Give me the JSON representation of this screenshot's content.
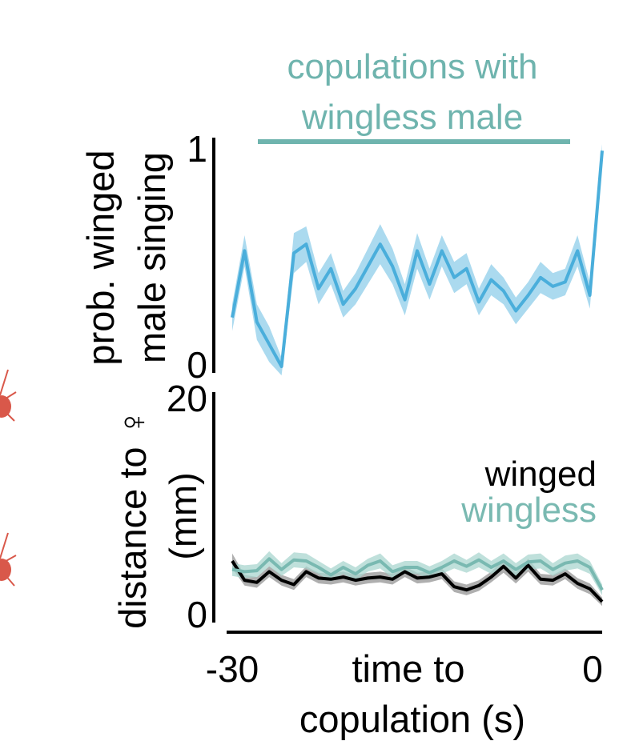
{
  "chart_data": [
    {
      "type": "line",
      "title_lines": [
        "copulations with",
        "wingless male"
      ],
      "ylabel_lines": [
        "prob. winged",
        "male singing"
      ],
      "xlim": [
        -30,
        0
      ],
      "ylim": [
        0,
        1
      ],
      "yticks": [
        "0",
        "1"
      ],
      "shaded_band": "mean ± error",
      "series": [
        {
          "x": [
            -30,
            -29,
            -28,
            -27,
            -26,
            -25,
            -24,
            -23,
            -22,
            -21,
            -20,
            -19,
            -18,
            -17,
            -16,
            -15,
            -14,
            -13,
            -12,
            -11,
            -10,
            -9,
            -8,
            -7,
            -6,
            -5,
            -4,
            -3,
            -2,
            -1,
            0
          ],
          "y": [
            0.22,
            0.52,
            0.2,
            0.1,
            0.0,
            0.51,
            0.55,
            0.35,
            0.44,
            0.28,
            0.35,
            0.45,
            0.55,
            0.45,
            0.3,
            0.52,
            0.37,
            0.52,
            0.4,
            0.44,
            0.29,
            0.39,
            0.34,
            0.25,
            0.32,
            0.4,
            0.36,
            0.38,
            0.52,
            0.32,
            0.97
          ],
          "err": [
            0.06,
            0.07,
            0.08,
            0.08,
            0.04,
            0.09,
            0.08,
            0.07,
            0.07,
            0.06,
            0.07,
            0.08,
            0.09,
            0.08,
            0.07,
            0.08,
            0.07,
            0.07,
            0.07,
            0.07,
            0.06,
            0.07,
            0.06,
            0.06,
            0.06,
            0.07,
            0.06,
            0.06,
            0.07,
            0.06,
            0.03
          ]
        }
      ],
      "color": "#4aaedb",
      "band_color": "#8fcdea",
      "bracket_color": "#6fb4ae"
    },
    {
      "type": "line",
      "ylabel_lines": [
        "distance to ♀",
        "(mm)"
      ],
      "xlabel_lines": [
        "time to",
        "copulation (s)"
      ],
      "xlim": [
        -30,
        0
      ],
      "ylim": [
        0,
        20
      ],
      "xticks": [
        "-30",
        "0"
      ],
      "yticks": [
        "0",
        "20"
      ],
      "legend": [
        "winged",
        "wingless"
      ],
      "legend_placement": "right",
      "shaded_band": "mean ± error",
      "series": [
        {
          "name": "winged",
          "color": "#000000",
          "band_color": "#7a7a7a",
          "x": [
            -30,
            -29,
            -28,
            -27,
            -26,
            -25,
            -24,
            -23,
            -22,
            -21,
            -20,
            -19,
            -18,
            -17,
            -16,
            -15,
            -14,
            -13,
            -12,
            -11,
            -10,
            -9,
            -8,
            -7,
            -6,
            -5,
            -4,
            -3,
            -2,
            -1,
            0
          ],
          "y": [
            5.0,
            3.2,
            3.0,
            4.0,
            3.2,
            2.8,
            4.0,
            3.4,
            3.3,
            3.5,
            3.2,
            3.4,
            3.5,
            3.3,
            4.0,
            3.4,
            3.5,
            3.8,
            2.6,
            2.3,
            2.7,
            3.5,
            4.5,
            3.4,
            4.6,
            3.3,
            3.2,
            3.8,
            2.9,
            2.4,
            1.2
          ],
          "err": [
            0.7,
            0.5,
            0.5,
            0.5,
            0.5,
            0.5,
            0.5,
            0.5,
            0.5,
            0.5,
            0.5,
            0.5,
            0.5,
            0.5,
            0.5,
            0.5,
            0.5,
            0.5,
            0.5,
            0.5,
            0.5,
            0.5,
            0.6,
            0.5,
            0.6,
            0.5,
            0.5,
            0.5,
            0.5,
            0.5,
            0.4
          ]
        },
        {
          "name": "wingless",
          "color": "#79b9b1",
          "band_color": "#a9d5cf",
          "x": [
            -30,
            -29,
            -28,
            -27,
            -26,
            -25,
            -24,
            -23,
            -22,
            -21,
            -20,
            -19,
            -18,
            -17,
            -16,
            -15,
            -14,
            -13,
            -12,
            -11,
            -10,
            -9,
            -8,
            -7,
            -6,
            -5,
            -4,
            -3,
            -2,
            -1,
            0
          ],
          "y": [
            4.2,
            4.0,
            4.1,
            5.2,
            4.2,
            5.1,
            5.0,
            4.4,
            3.7,
            4.4,
            3.8,
            4.6,
            5.0,
            4.0,
            4.4,
            4.4,
            3.9,
            4.4,
            5.0,
            4.5,
            5.1,
            4.4,
            5.0,
            4.2,
            4.9,
            5.0,
            4.2,
            4.8,
            5.0,
            4.4,
            2.3
          ],
          "err": [
            0.6,
            0.6,
            0.6,
            0.7,
            0.6,
            0.7,
            0.7,
            0.6,
            0.6,
            0.6,
            0.6,
            0.6,
            0.7,
            0.6,
            0.6,
            0.6,
            0.6,
            0.6,
            0.7,
            0.6,
            0.7,
            0.6,
            0.7,
            0.6,
            0.7,
            0.7,
            0.6,
            0.7,
            0.7,
            0.6,
            0.5
          ]
        }
      ]
    }
  ],
  "decor": {
    "female_symbol_color": "#d9584a",
    "fly_icon_color": "#d9584a"
  }
}
